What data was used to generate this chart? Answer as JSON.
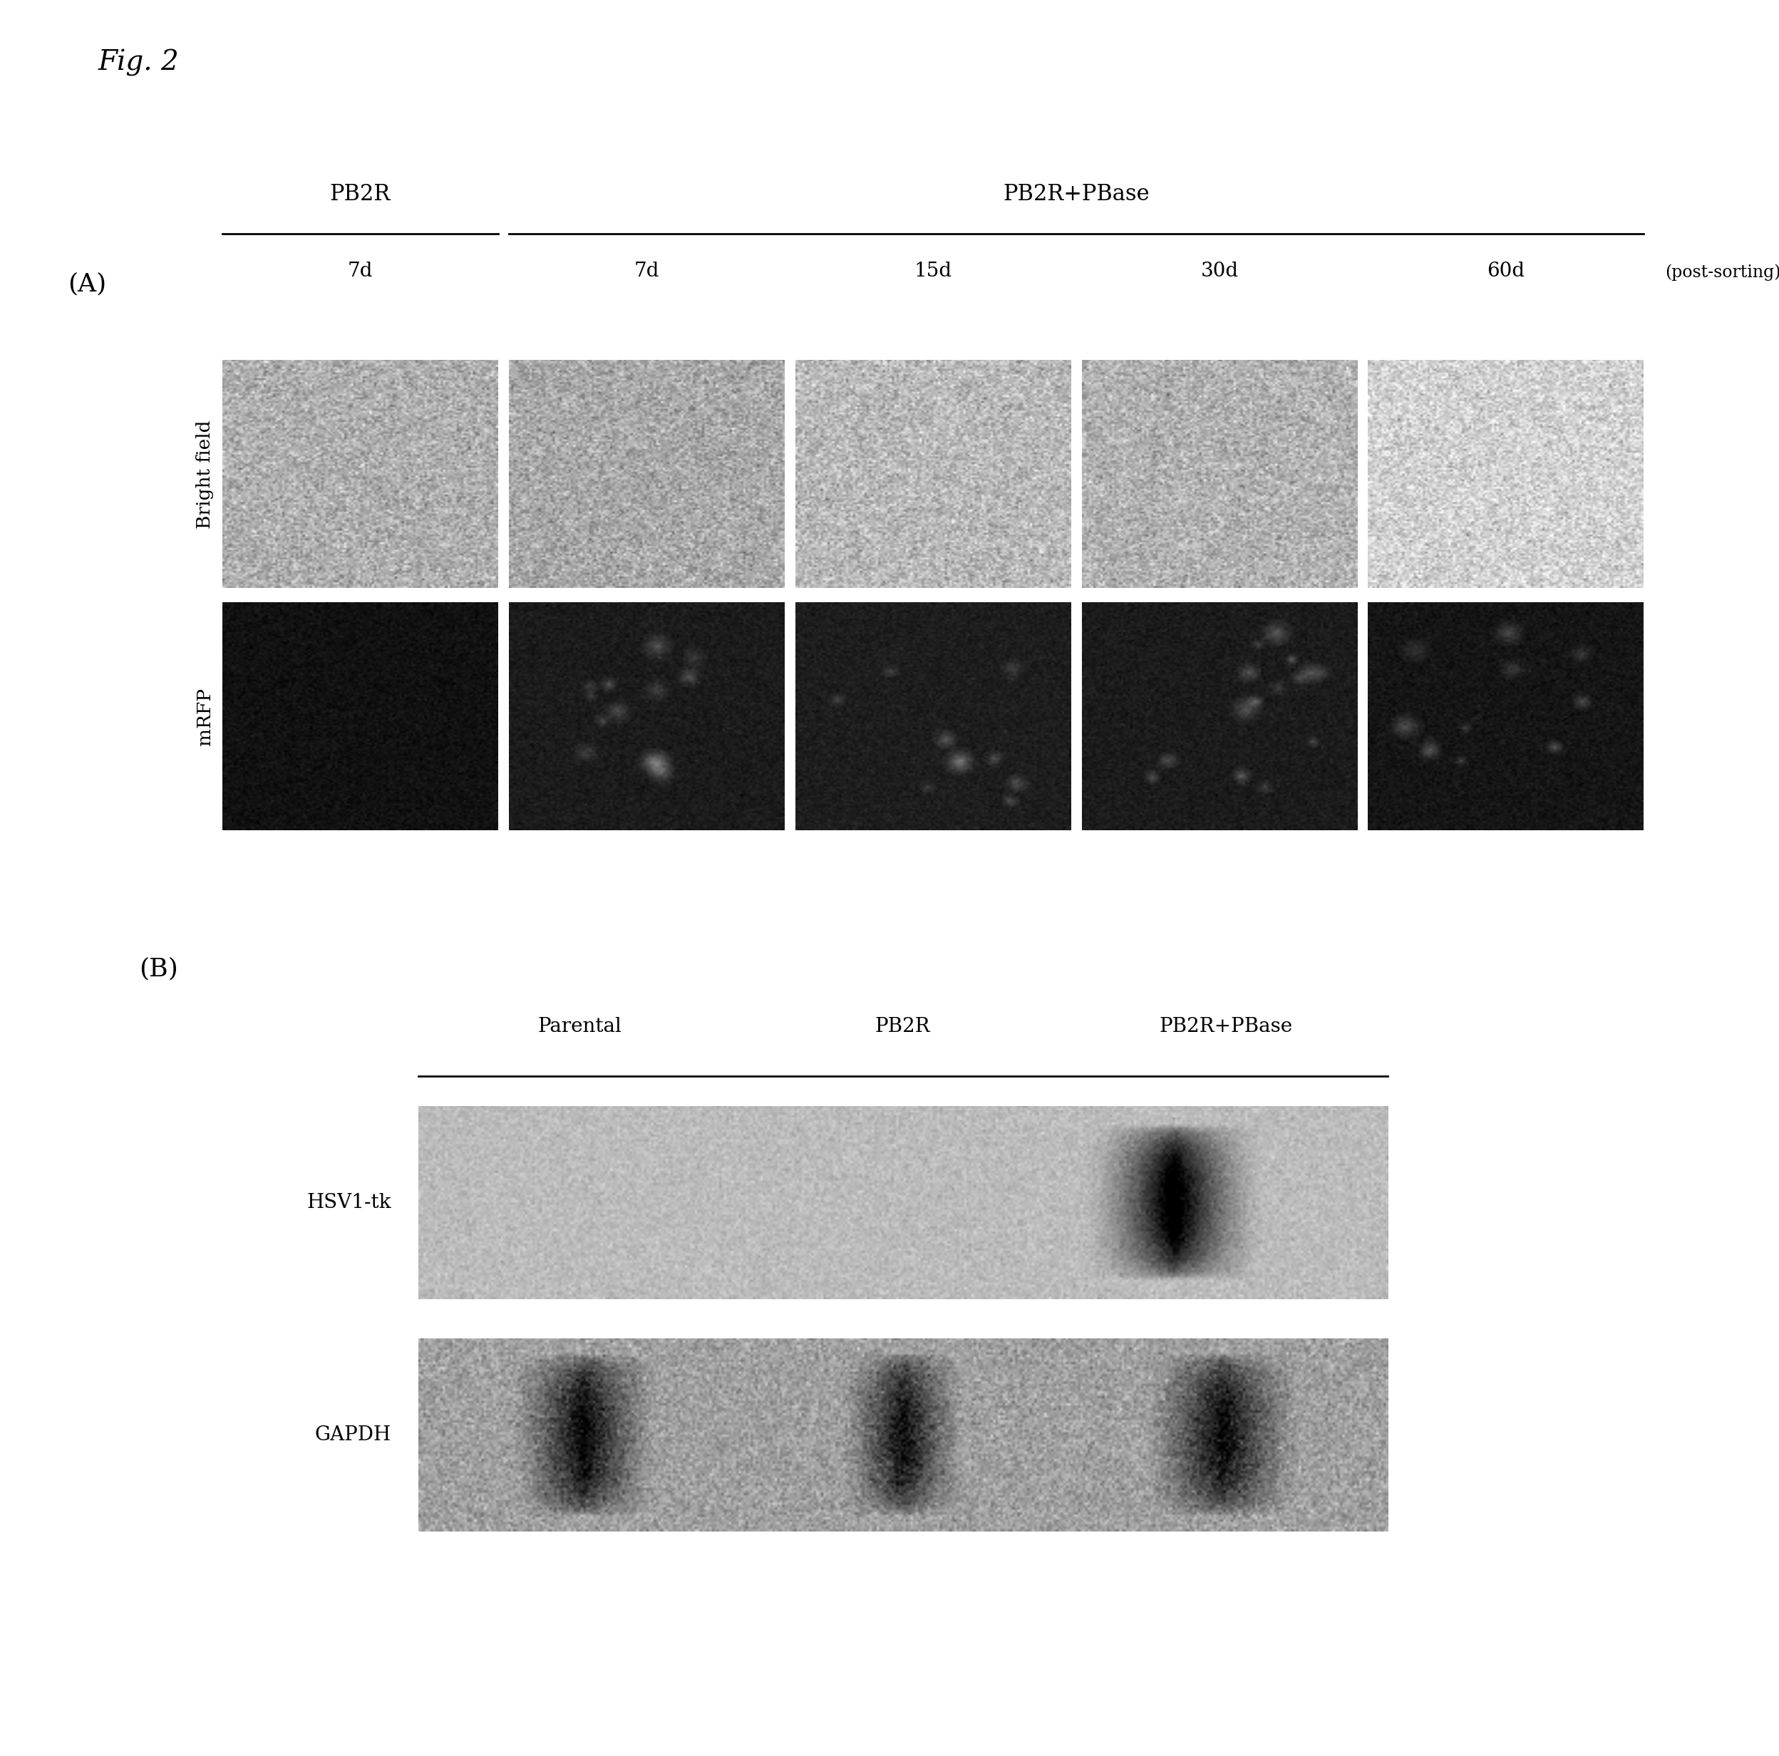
{
  "fig_label": "Fig. 2",
  "panel_A_label": "(A)",
  "panel_B_label": "(B)",
  "group1_label": "PB2R",
  "group2_label": "PB2R+PBase",
  "time_labels": [
    "7d",
    "7d",
    "15d",
    "30d",
    "60d"
  ],
  "post_sorting_label": "(post-sorting)",
  "row_labels": [
    "Bright field",
    "mRFP"
  ],
  "wb_col_labels_parental": "Parental",
  "wb_col_labels_pb2r": "PB2R",
  "wb_col_labels_pb2rpbase": "PB2R+PBase",
  "wb_row1_label": "HSV1-tk",
  "wb_row2_label": "GAPDH",
  "bg_color": "#ffffff",
  "bright_field_base": [
    175,
    168,
    185,
    178,
    210
  ],
  "mrfp_base": [
    18,
    28,
    30,
    28,
    22
  ],
  "wb_bg1": 188,
  "wb_bg2": 160
}
